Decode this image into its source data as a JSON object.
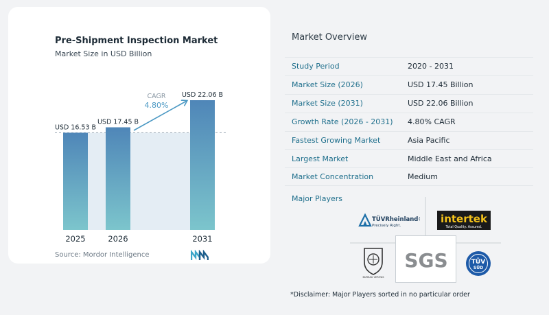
{
  "chart_data": {
    "type": "bar",
    "title": "Pre-Shipment Inspection Market",
    "subtitle": "Market Size in USD Billion",
    "categories": [
      "2025",
      "2026",
      "2031"
    ],
    "values": [
      16.53,
      17.45,
      22.06
    ],
    "value_labels": [
      "USD 16.53 B",
      "USD 17.45 B",
      "USD 22.06 B"
    ],
    "ylim": [
      0,
      22.06
    ],
    "cagr_label": "CAGR",
    "cagr_value": "4.80%",
    "colors": {
      "bar_top": "#4f86b8",
      "bar_bottom": "#7cc5cc",
      "band": "#e4edf4",
      "arrow": "#4a98c3"
    }
  },
  "source": "Source: Mordor Intelligence",
  "overview": {
    "title": "Market Overview",
    "rows": [
      {
        "key": "Study Period",
        "value": "2020 - 2031"
      },
      {
        "key": "Market Size (2026)",
        "value": "USD 17.45 Billion"
      },
      {
        "key": "Market Size (2031)",
        "value": "USD 22.06 Billion"
      },
      {
        "key": "Growth Rate (2026 - 2031)",
        "value": "4.80% CAGR"
      },
      {
        "key": "Fastest Growing Market",
        "value": "Asia Pacific"
      },
      {
        "key": "Largest Market",
        "value": "Middle East and Africa"
      },
      {
        "key": "Market Concentration",
        "value": "Medium"
      }
    ]
  },
  "players": {
    "title": "Major Players",
    "tuv_rheinland": {
      "name": "TÜVRheinland®",
      "tagline": "Precisely Right."
    },
    "intertek": {
      "name": "intertek",
      "tagline": "Total Quality. Assured."
    },
    "bureau_veritas": {
      "name": "BUREAU VERITAS"
    },
    "sgs": {
      "name": "SGS"
    },
    "tuv_sud": {
      "name": "TÜV",
      "sub": "SÜD"
    }
  },
  "disclaimer": "*Disclaimer: Major Players sorted in no particular order"
}
